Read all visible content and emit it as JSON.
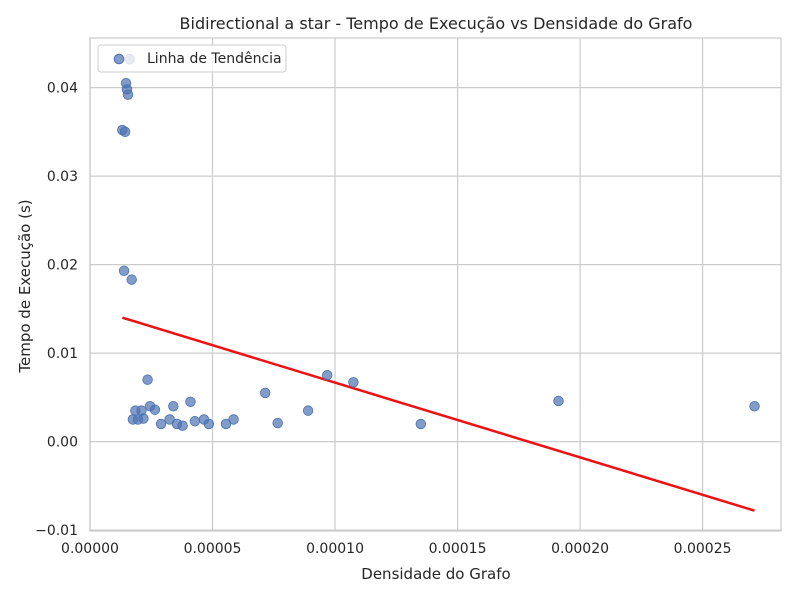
{
  "chart_data": {
    "type": "scatter",
    "title": "Bidirectional a star - Tempo de Execução vs Densidade do Grafo",
    "xlabel": "Densidade do Grafo",
    "ylabel": "Tempo de Execução (s)",
    "xlim": [
      0,
      0.000282
    ],
    "ylim": [
      -0.0101,
      0.0456
    ],
    "x_ticks": [
      0,
      5e-05,
      0.0001,
      0.00015,
      0.0002,
      0.00025
    ],
    "x_tick_labels": [
      "0.00000",
      "0.00005",
      "0.00010",
      "0.00015",
      "0.00020",
      "0.00025"
    ],
    "y_ticks": [
      -0.01,
      0,
      0.01,
      0.02,
      0.03,
      0.04
    ],
    "y_tick_labels": [
      "−0.01",
      "0.00",
      "0.01",
      "0.02",
      "0.03",
      "0.04"
    ],
    "grid": true,
    "legend": {
      "position": "top-left",
      "entries": [
        "Linha de Tendência"
      ]
    },
    "colors": {
      "points": "#4c72b0",
      "trend": "#ee1111",
      "grid": "#cccccc",
      "axes": "#cccccc"
    },
    "series": [
      {
        "kind": "scatter",
        "x": [
          1.32e-05,
          1.43e-05,
          1.47e-05,
          1.51e-05,
          1.55e-05,
          1.62e-05,
          1.39e-05,
          1.7e-05,
          1.75e-05,
          1.85e-05,
          1.96e-05,
          2.1e-05,
          2.18e-05,
          2.35e-05,
          2.45e-05,
          2.65e-05,
          2.9e-05,
          3.25e-05,
          3.4e-05,
          3.55e-05,
          3.78e-05,
          4.1e-05,
          4.28e-05,
          4.65e-05,
          4.85e-05,
          5.55e-05,
          5.86e-05,
          7.15e-05,
          7.66e-05,
          8.9e-05,
          9.68e-05,
          0.0001075,
          0.000135,
          0.0001912,
          0.0002712
        ],
        "y": [
          0.0352,
          0.035,
          0.0405,
          0.0398,
          0.0392,
          0.0432,
          0.0193,
          0.0183,
          0.0025,
          0.0035,
          0.0025,
          0.0035,
          0.0026,
          0.007,
          0.004,
          0.0036,
          0.002,
          0.0025,
          0.004,
          0.002,
          0.0018,
          0.0045,
          0.0023,
          0.0025,
          0.002,
          0.002,
          0.0025,
          0.0055,
          0.0021,
          0.0035,
          0.0075,
          0.0067,
          0.002,
          0.0046,
          0.004
        ]
      },
      {
        "kind": "line",
        "name": "Linha de Tendência",
        "x": [
          1.32e-05,
          0.0002712
        ],
        "y": [
          0.014,
          -0.0078
        ]
      }
    ]
  }
}
